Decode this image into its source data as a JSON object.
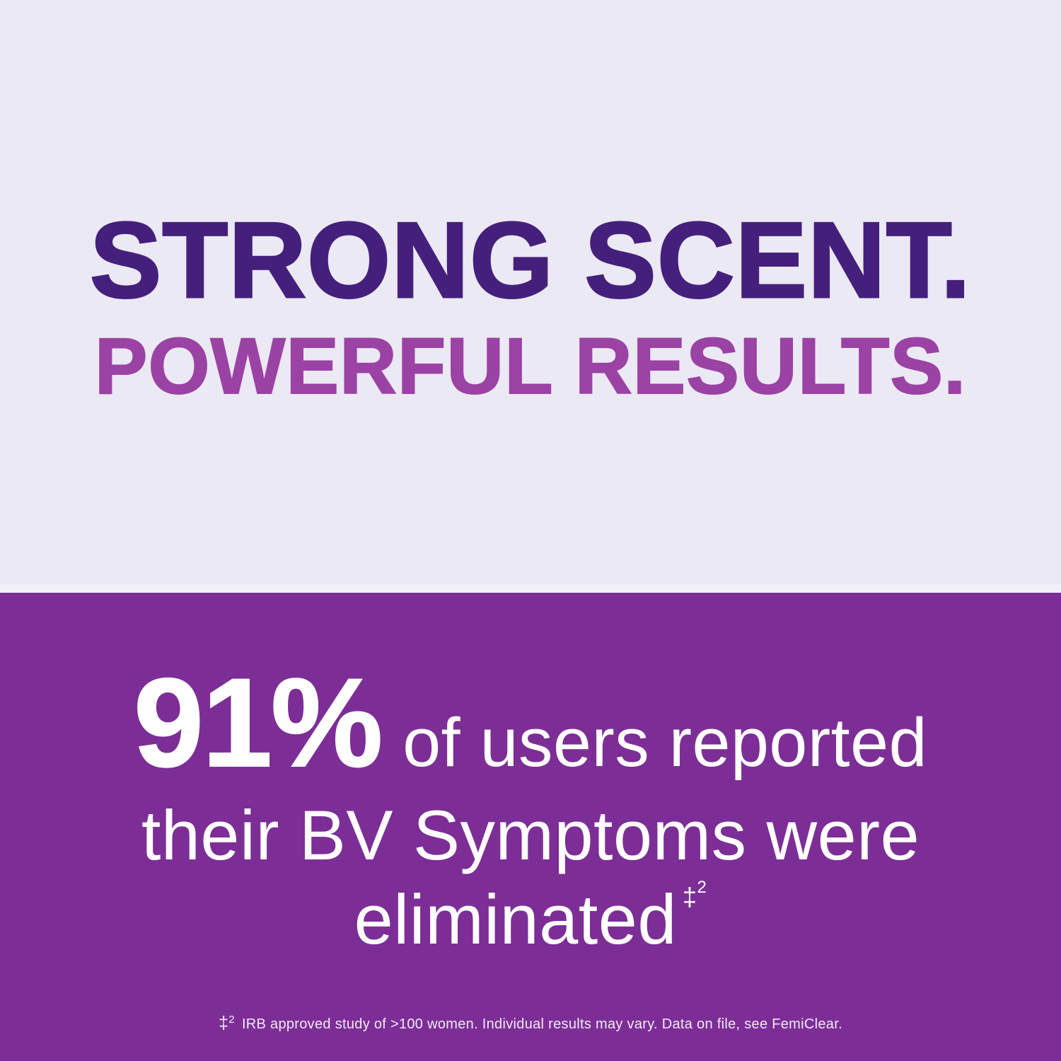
{
  "colors": {
    "light_background": "#EBE9F3",
    "divider_band": "#F3F1F8",
    "dark_purple_headline": "#44207C",
    "medium_purple_headline": "#9B42A5",
    "purple_background": "#7C2E96",
    "stat_text": "#FFFFFF",
    "footnote_text": "#F2EAF6"
  },
  "hero": {
    "line1": "STRONG SCENT.",
    "line2": "POWERFUL RESULTS."
  },
  "stat": {
    "value": "91%",
    "after_value": "of users reported",
    "line2": "their BV Symptoms were",
    "line3": "eliminated",
    "sup_dagger": "‡",
    "sup_two": "2"
  },
  "footnote": {
    "dagger": "‡",
    "two": "2",
    "text": "IRB approved study of >100 women. Individual results may vary. Data on file, see FemiClear."
  }
}
